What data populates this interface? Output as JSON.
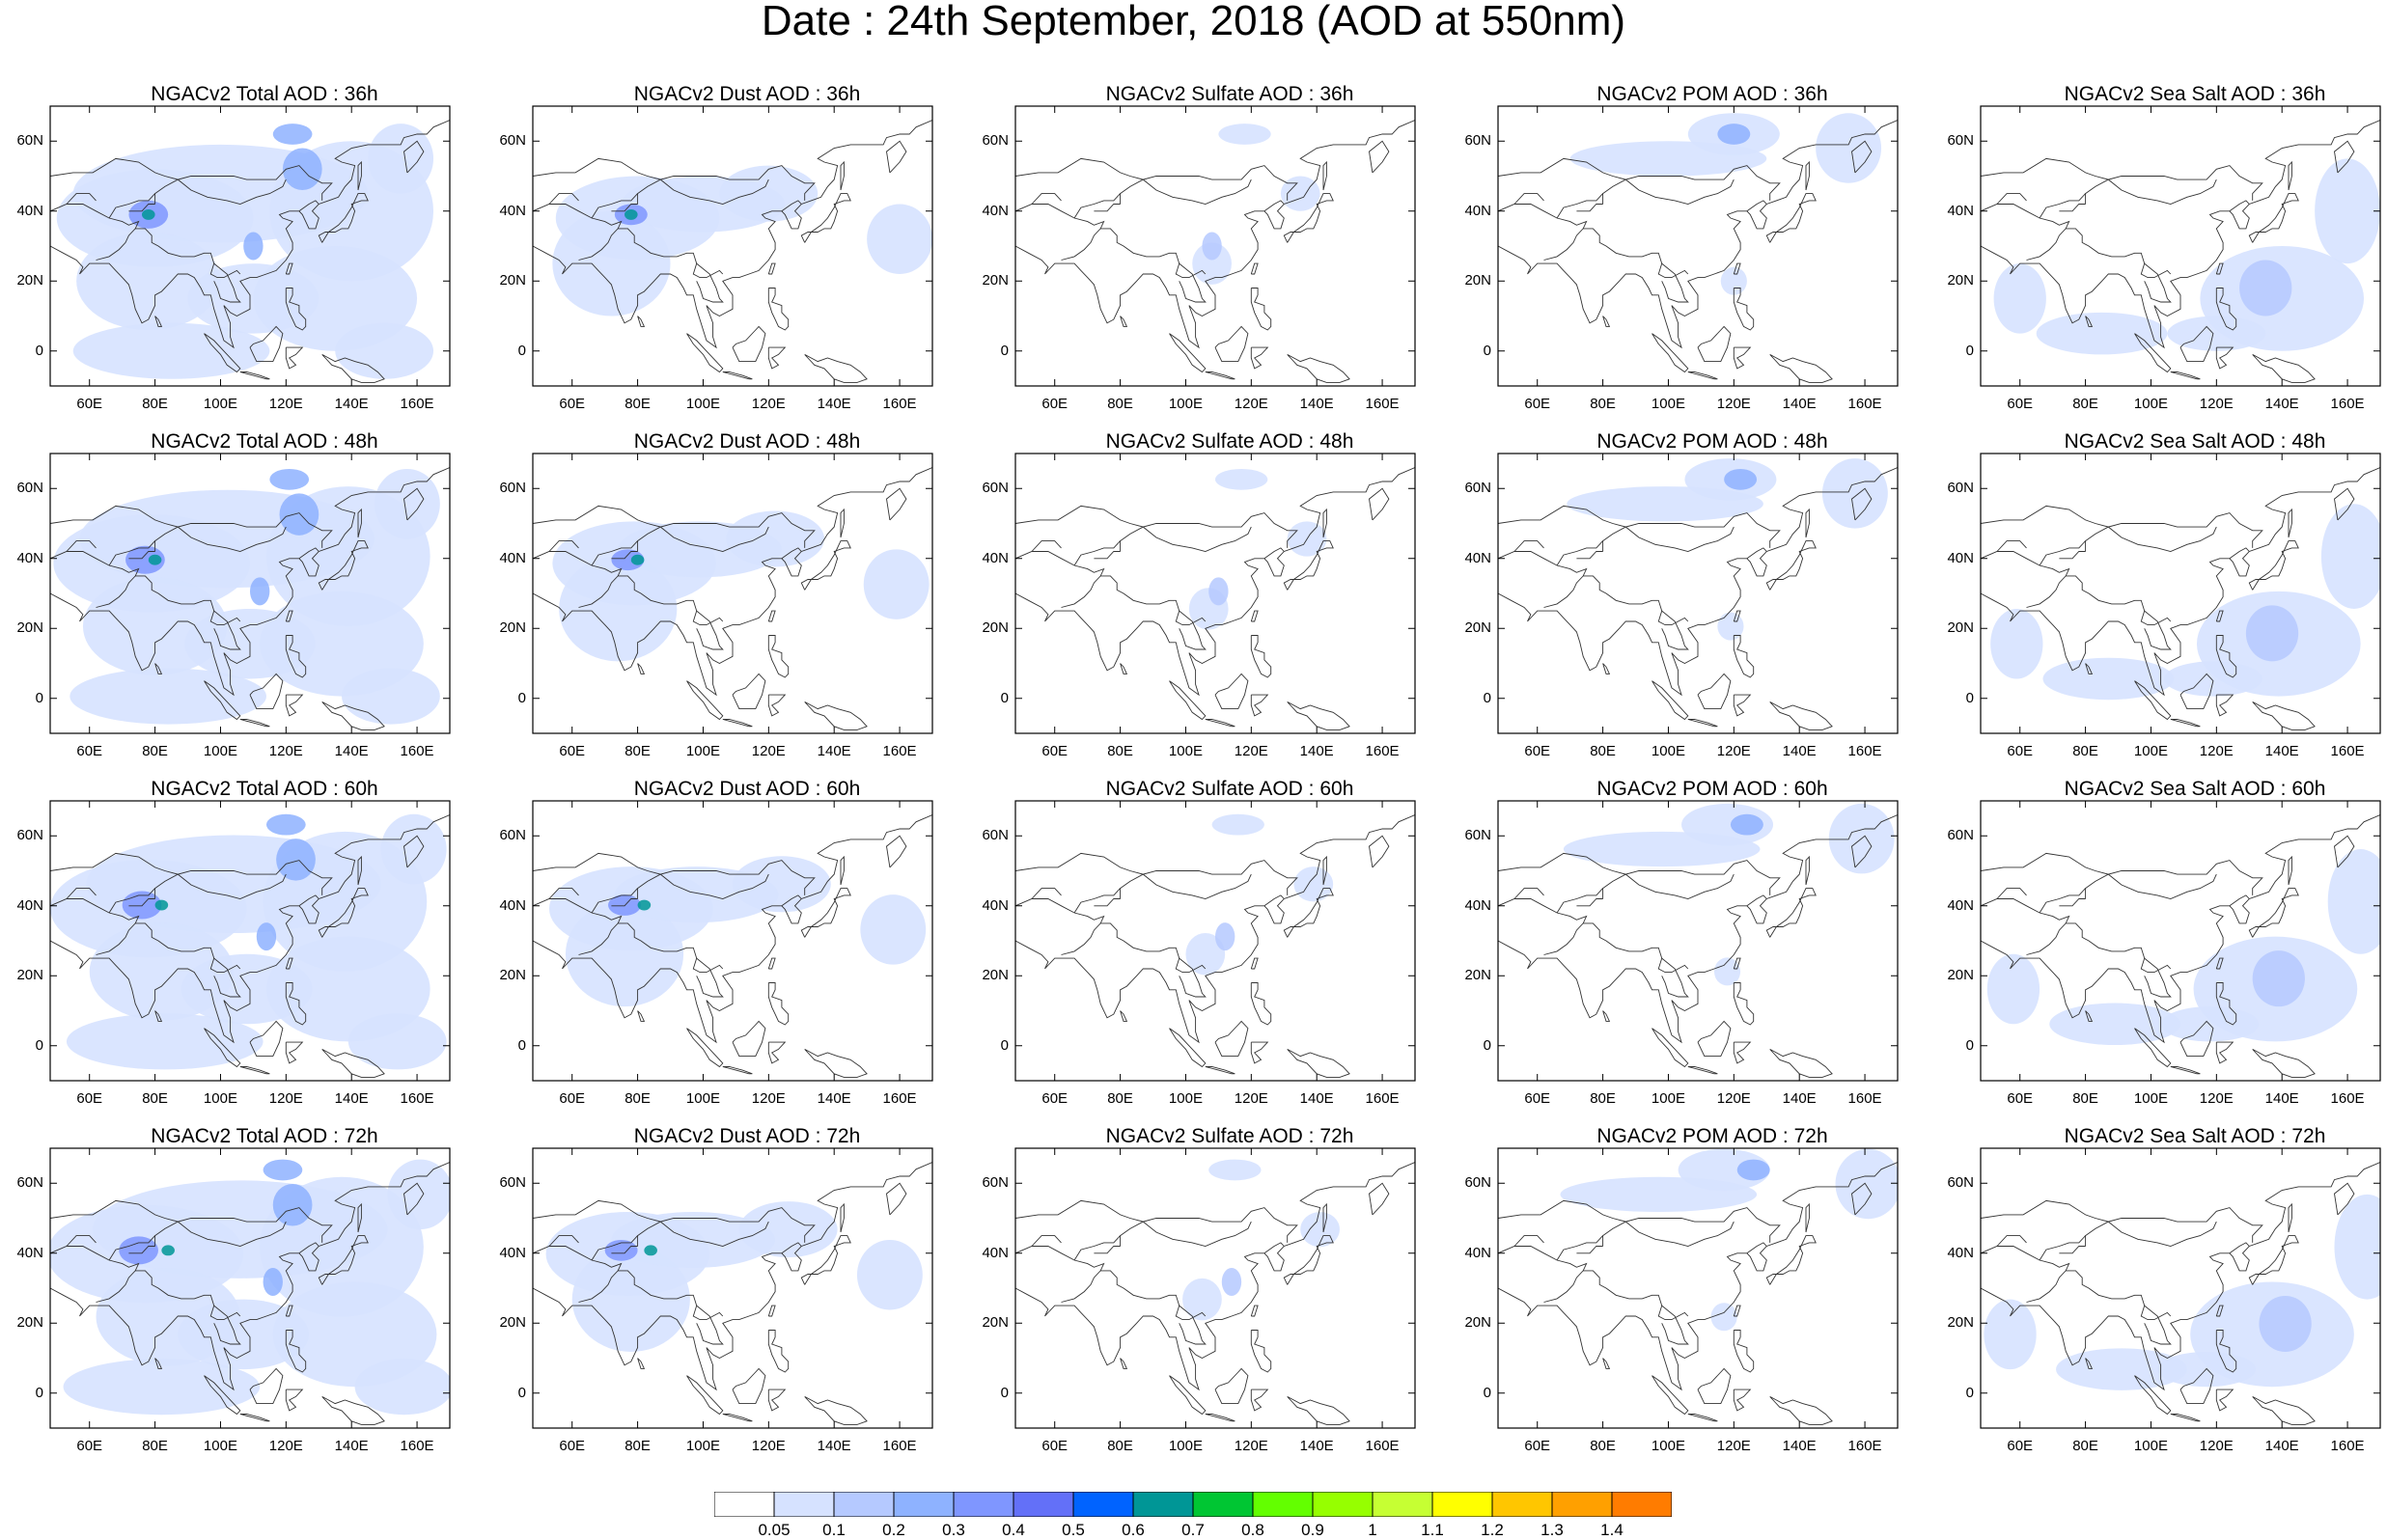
{
  "title": "Date : 24th September, 2018 (AOD at 550nm)",
  "lat_labels": [
    "60N",
    "40N",
    "20N",
    "0"
  ],
  "lon_labels": [
    "60E",
    "80E",
    "100E",
    "120E",
    "140E",
    "160E"
  ],
  "panels": [
    {
      "title": "NGACv2 Total AOD : 36h",
      "field": "total",
      "lead": 36
    },
    {
      "title": "NGACv2 Dust AOD : 36h",
      "field": "dust",
      "lead": 36
    },
    {
      "title": "NGACv2 Sulfate AOD : 36h",
      "field": "sulfate",
      "lead": 36
    },
    {
      "title": "NGACv2 POM AOD : 36h",
      "field": "pom",
      "lead": 36
    },
    {
      "title": "NGACv2 Sea Salt AOD : 36h",
      "field": "seasalt",
      "lead": 36
    },
    {
      "title": "NGACv2 Total AOD : 48h",
      "field": "total",
      "lead": 48
    },
    {
      "title": "NGACv2 Dust AOD : 48h",
      "field": "dust",
      "lead": 48
    },
    {
      "title": "NGACv2 Sulfate AOD : 48h",
      "field": "sulfate",
      "lead": 48
    },
    {
      "title": "NGACv2 POM AOD : 48h",
      "field": "pom",
      "lead": 48
    },
    {
      "title": "NGACv2 Sea Salt AOD : 48h",
      "field": "seasalt",
      "lead": 48
    },
    {
      "title": "NGACv2 Total AOD : 60h",
      "field": "total",
      "lead": 60
    },
    {
      "title": "NGACv2 Dust AOD : 60h",
      "field": "dust",
      "lead": 60
    },
    {
      "title": "NGACv2 Sulfate AOD : 60h",
      "field": "sulfate",
      "lead": 60
    },
    {
      "title": "NGACv2 POM AOD : 60h",
      "field": "pom",
      "lead": 60
    },
    {
      "title": "NGACv2 Sea Salt AOD : 60h",
      "field": "seasalt",
      "lead": 60
    },
    {
      "title": "NGACv2 Total AOD : 72h",
      "field": "total",
      "lead": 72
    },
    {
      "title": "NGACv2 Dust AOD : 72h",
      "field": "dust",
      "lead": 72
    },
    {
      "title": "NGACv2 Sulfate AOD : 72h",
      "field": "sulfate",
      "lead": 72
    },
    {
      "title": "NGACv2 POM AOD : 72h",
      "field": "pom",
      "lead": 72
    },
    {
      "title": "NGACv2 Sea Salt  AOD : 72h",
      "field": "seasalt",
      "lead": 72
    }
  ],
  "colorbar": {
    "labels": [
      "0.05",
      "0.1",
      "0.2",
      "0.3",
      "0.4",
      "0.5",
      "0.6",
      "0.7",
      "0.8",
      "0.9",
      "1",
      "1.1",
      "1.2",
      "1.3",
      "1.4"
    ],
    "colors": [
      "#ffffff",
      "#d6e2ff",
      "#b5c9ff",
      "#8eb2ff",
      "#7f96ff",
      "#6370f8",
      "#0063ff",
      "#009696",
      "#00c633",
      "#63ff00",
      "#96ff00",
      "#c6ff33",
      "#ffff00",
      "#ffc600",
      "#ffa000",
      "#ff7c00",
      "#ff1900"
    ]
  }
}
